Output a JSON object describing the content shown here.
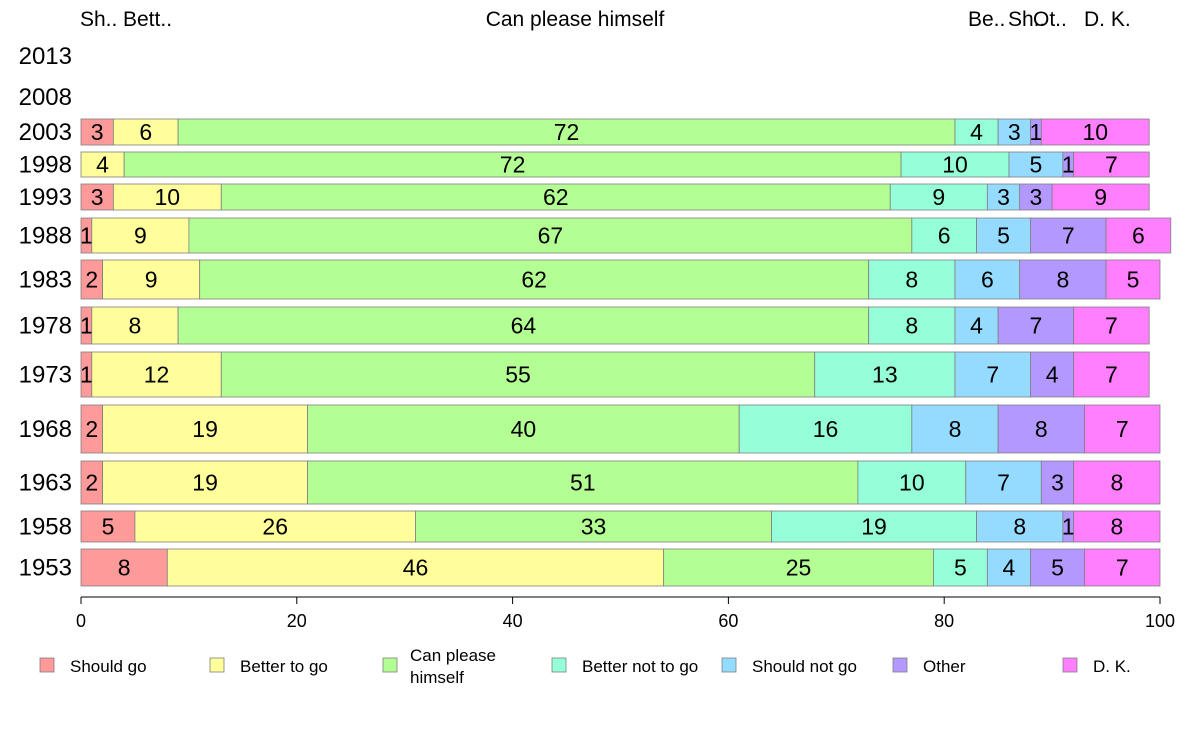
{
  "chart_data": {
    "type": "bar",
    "orientation": "horizontal",
    "stacked": true,
    "percent_stacked": true,
    "title": "",
    "top_labels": [
      "Sh..",
      "Bett..",
      "Can please himself",
      "Be..",
      "Sh..",
      "Ot..",
      "D. K."
    ],
    "categories": [
      "2013",
      "2008",
      "2003",
      "1998",
      "1993",
      "1988",
      "1983",
      "1978",
      "1973",
      "1968",
      "1963",
      "1958",
      "1953"
    ],
    "xlim": [
      0,
      100
    ],
    "xticks": [
      0,
      20,
      40,
      60,
      80,
      100
    ],
    "grid": false,
    "legend_position": "bottom",
    "series": [
      {
        "name": "Should go",
        "color": "#ff9a9a",
        "values": [
          null,
          null,
          3,
          0,
          3,
          1,
          2,
          1,
          1,
          2,
          2,
          5,
          8
        ]
      },
      {
        "name": "Better to go",
        "color": "#fffe9a",
        "values": [
          null,
          null,
          6,
          4,
          10,
          9,
          9,
          8,
          12,
          19,
          19,
          26,
          46
        ]
      },
      {
        "name": "Can please himself",
        "color": "#b3ff94",
        "values": [
          null,
          null,
          72,
          72,
          62,
          67,
          62,
          64,
          55,
          40,
          51,
          33,
          25
        ]
      },
      {
        "name": "Better not to go",
        "color": "#94ffd9",
        "values": [
          null,
          null,
          4,
          10,
          9,
          6,
          8,
          8,
          13,
          16,
          10,
          19,
          5
        ]
      },
      {
        "name": "Should not go",
        "color": "#94dbff",
        "values": [
          null,
          null,
          3,
          5,
          3,
          5,
          6,
          4,
          7,
          8,
          7,
          8,
          4
        ]
      },
      {
        "name": "Other",
        "color": "#b399ff",
        "values": [
          null,
          null,
          1,
          1,
          3,
          7,
          8,
          7,
          4,
          8,
          3,
          1,
          5
        ]
      },
      {
        "name": "D. K.",
        "color": "#ff7fff",
        "values": [
          null,
          null,
          10,
          7,
          9,
          6,
          5,
          7,
          7,
          7,
          8,
          8,
          7
        ]
      }
    ],
    "legend_labels": [
      "Should go",
      "Better to go",
      "Can please\nhimself",
      "Better not to go",
      "Should not go",
      "Other",
      "D. K."
    ]
  }
}
